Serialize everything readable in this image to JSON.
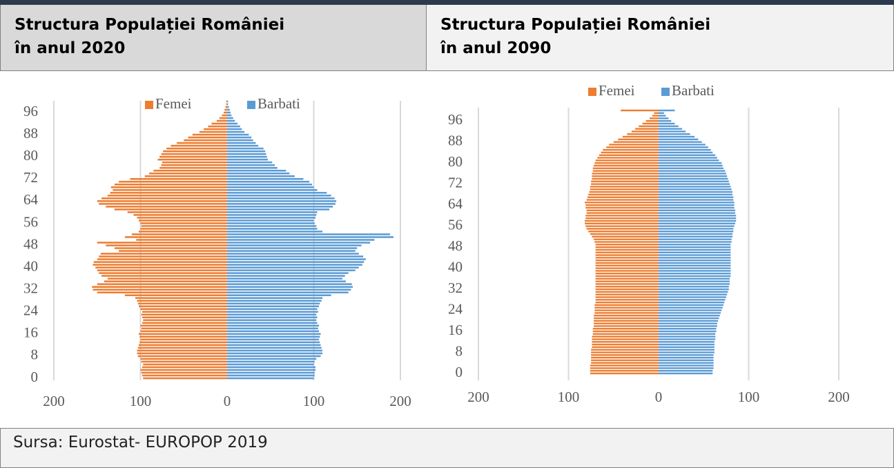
{
  "header": {
    "cells": [
      [
        "Structura Populației României",
        "în anul 2020"
      ],
      [
        "Structura Populației României",
        "în anul 2090"
      ]
    ]
  },
  "chart_data": [
    {
      "type": "pyramid",
      "categories": [
        0,
        null,
        null,
        null,
        null,
        null,
        null,
        null,
        8,
        null,
        null,
        null,
        null,
        null,
        null,
        null,
        16,
        null,
        null,
        null,
        null,
        null,
        null,
        null,
        24,
        null,
        null,
        null,
        null,
        null,
        null,
        null,
        32,
        null,
        null,
        null,
        null,
        null,
        null,
        null,
        40,
        null,
        null,
        null,
        null,
        null,
        null,
        null,
        48,
        null,
        null,
        null,
        null,
        null,
        null,
        null,
        56,
        null,
        null,
        null,
        null,
        null,
        null,
        null,
        64,
        null,
        null,
        null,
        null,
        null,
        null,
        null,
        72,
        null,
        null,
        null,
        null,
        null,
        null,
        null,
        80,
        null,
        null,
        null,
        null,
        null,
        null,
        null,
        88,
        null,
        null,
        null,
        null,
        null,
        null,
        null,
        96,
        null,
        null,
        null,
        null
      ],
      "series": [
        {
          "name": "Femei",
          "color": "#ed7d31",
          "values": [
            -97,
            -98,
            -99,
            -100,
            -98,
            -97,
            -99,
            -100,
            -103,
            -104,
            -104,
            -103,
            -102,
            -101,
            -100,
            -101,
            -102,
            -100,
            -99,
            -100,
            -98,
            -97,
            -98,
            -99,
            -98,
            -100,
            -102,
            -103,
            -104,
            -106,
            -118,
            -150,
            -155,
            -156,
            -150,
            -142,
            -138,
            -145,
            -148,
            -150,
            -152,
            -155,
            -154,
            -150,
            -148,
            -146,
            -125,
            -130,
            -140,
            -150,
            -105,
            -118,
            -110,
            -102,
            -100,
            -99,
            -100,
            -102,
            -104,
            -108,
            -115,
            -130,
            -140,
            -148,
            -150,
            -145,
            -138,
            -135,
            -132,
            -134,
            -130,
            -125,
            -112,
            -95,
            -90,
            -85,
            -78,
            -76,
            -75,
            -80,
            -78,
            -76,
            -74,
            -70,
            -65,
            -58,
            -50,
            -45,
            -40,
            -32,
            -27,
            -22,
            -18,
            -12,
            -9,
            -6,
            -4,
            -3,
            -2,
            -1,
            -1
          ]
        },
        {
          "name": "Barbati",
          "color": "#5b9bd5",
          "values": [
            100,
            101,
            101,
            102,
            102,
            100,
            101,
            103,
            108,
            110,
            110,
            109,
            108,
            107,
            106,
            107,
            108,
            106,
            105,
            106,
            104,
            103,
            104,
            103,
            105,
            104,
            106,
            107,
            109,
            110,
            120,
            140,
            143,
            145,
            144,
            137,
            133,
            136,
            140,
            148,
            152,
            156,
            158,
            160,
            157,
            152,
            148,
            150,
            155,
            165,
            170,
            192,
            188,
            110,
            104,
            103,
            101,
            100,
            102,
            103,
            104,
            118,
            122,
            125,
            126,
            124,
            120,
            115,
            104,
            100,
            98,
            95,
            88,
            78,
            72,
            68,
            58,
            55,
            52,
            47,
            46,
            45,
            44,
            42,
            36,
            33,
            30,
            28,
            25,
            20,
            17,
            15,
            12,
            9,
            7,
            5,
            4,
            3,
            2,
            1,
            1
          ]
        }
      ],
      "xlim": [
        -200,
        200
      ],
      "xticks": [
        {
          "value": -200,
          "label": "200"
        },
        {
          "value": -100,
          "label": "100"
        },
        0,
        100,
        200
      ],
      "grid": true,
      "legend": "top"
    },
    {
      "type": "pyramid",
      "categories": [
        0,
        null,
        null,
        null,
        null,
        null,
        null,
        null,
        8,
        null,
        null,
        null,
        null,
        null,
        null,
        null,
        16,
        null,
        null,
        null,
        null,
        null,
        null,
        null,
        24,
        null,
        null,
        null,
        null,
        null,
        null,
        null,
        32,
        null,
        null,
        null,
        null,
        null,
        null,
        null,
        40,
        null,
        null,
        null,
        null,
        null,
        null,
        null,
        48,
        null,
        null,
        null,
        null,
        null,
        null,
        null,
        56,
        null,
        null,
        null,
        null,
        null,
        null,
        null,
        64,
        null,
        null,
        null,
        null,
        null,
        null,
        null,
        72,
        null,
        null,
        null,
        null,
        null,
        null,
        null,
        80,
        null,
        null,
        null,
        null,
        null,
        null,
        null,
        88,
        null,
        null,
        null,
        null,
        null,
        null,
        null,
        96,
        null,
        null,
        null,
        null
      ],
      "series": [
        {
          "name": "Femei",
          "color": "#ed7d31",
          "values": [
            -76,
            -76,
            -76,
            -76,
            -75,
            -75,
            -75,
            -75,
            -75,
            -75,
            -74,
            -74,
            -74,
            -74,
            -74,
            -73,
            -73,
            -73,
            -72,
            -72,
            -72,
            -72,
            -72,
            -71,
            -71,
            -71,
            -71,
            -70,
            -70,
            -70,
            -70,
            -70,
            -70,
            -70,
            -70,
            -70,
            -70,
            -70,
            -70,
            -70,
            -70,
            -70,
            -70,
            -70,
            -70,
            -70,
            -70,
            -70,
            -70,
            -70,
            -71,
            -72,
            -74,
            -76,
            -78,
            -80,
            -81,
            -82,
            -82,
            -81,
            -81,
            -80,
            -80,
            -81,
            -81,
            -82,
            -80,
            -79,
            -78,
            -77,
            -76,
            -76,
            -75,
            -75,
            -74,
            -74,
            -74,
            -73,
            -73,
            -72,
            -71,
            -70,
            -68,
            -66,
            -64,
            -62,
            -58,
            -55,
            -50,
            -45,
            -40,
            -35,
            -30,
            -26,
            -22,
            -18,
            -14,
            -10,
            -7,
            -5,
            -42
          ]
        },
        {
          "name": "Barbati",
          "color": "#5b9bd5",
          "values": [
            60,
            60,
            61,
            61,
            61,
            61,
            61,
            61,
            62,
            62,
            62,
            62,
            62,
            63,
            63,
            63,
            64,
            64,
            65,
            65,
            66,
            67,
            68,
            69,
            70,
            71,
            72,
            73,
            74,
            75,
            76,
            77,
            78,
            78,
            79,
            79,
            79,
            80,
            80,
            80,
            80,
            80,
            80,
            80,
            80,
            80,
            80,
            80,
            80,
            80,
            81,
            81,
            82,
            82,
            83,
            83,
            84,
            85,
            86,
            86,
            86,
            85,
            85,
            84,
            84,
            84,
            83,
            83,
            82,
            82,
            81,
            80,
            79,
            78,
            77,
            76,
            75,
            74,
            72,
            71,
            70,
            67,
            65,
            63,
            60,
            58,
            55,
            52,
            48,
            44,
            40,
            35,
            30,
            26,
            22,
            18,
            14,
            11,
            8,
            6,
            18
          ]
        }
      ],
      "xlim": [
        -200,
        200
      ],
      "xticks": [
        {
          "value": -200,
          "label": "200"
        },
        {
          "value": -100,
          "label": "100"
        },
        0,
        100,
        200
      ],
      "grid": true,
      "legend": "top"
    }
  ],
  "footer": "Sursa: Eurostat- EUROPOP 2019"
}
